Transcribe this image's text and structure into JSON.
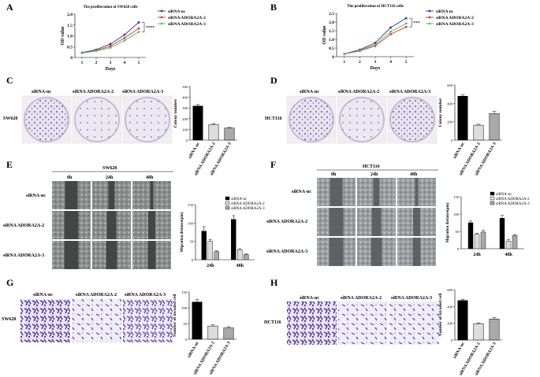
{
  "panel_labels": [
    "A",
    "B",
    "C",
    "D",
    "E",
    "F",
    "G",
    "H"
  ],
  "colors": {
    "nc": "#2d2db8",
    "r2": "#e0302a",
    "r3": "#4fc24f",
    "bar_nc": "#000000",
    "bar_r2": "#dcdcdc",
    "bar_r3": "#a9a9a9",
    "dish": "#e9e4ee",
    "crystal": "#4a2a98",
    "wound": "#6e7270"
  },
  "groups": {
    "nc": "siRNA-nc",
    "r2": "siRNA ADORA2A-2",
    "r3": "siRNA ADORA2A-3"
  },
  "legend_line": [
    "siRNA nc",
    "siRNA ADORA2A-2",
    "siRNA ADORA2A-3"
  ],
  "sig": "****",
  "sig_b": "***",
  "cell_lines": {
    "sw": "SW620",
    "hct": "HCT116"
  },
  "timepoints": [
    "0h",
    "24h",
    "48h"
  ],
  "chart_data": [
    {
      "id": "A",
      "type": "line",
      "title": "The proliferation of SW620 cells",
      "xlabel": "Days",
      "ylabel": "OD value",
      "x": [
        1,
        2,
        3,
        4,
        5
      ],
      "ylim": [
        0,
        2.0
      ],
      "yticks": [
        "0",
        "0.5",
        "1.0",
        "1.5",
        "2.0"
      ],
      "series": [
        {
          "name": "siRNA nc",
          "values": [
            0.22,
            0.36,
            0.62,
            1.05,
            1.62
          ]
        },
        {
          "name": "siRNA ADORA2A-2",
          "values": [
            0.21,
            0.32,
            0.52,
            0.9,
            1.34
          ]
        },
        {
          "name": "siRNA ADORA2A-3",
          "values": [
            0.2,
            0.3,
            0.45,
            0.78,
            1.18
          ]
        }
      ]
    },
    {
      "id": "B",
      "type": "line",
      "title": "The proliferation of HCT116 cells",
      "xlabel": "Days",
      "ylabel": "OD value",
      "x": [
        1,
        2,
        3,
        4,
        5
      ],
      "ylim": [
        0,
        2.5
      ],
      "yticks": [
        "0",
        "0.5",
        "1.0",
        "1.5",
        "2.0",
        "2.5"
      ],
      "series": [
        {
          "name": "siRNA nc",
          "values": [
            0.16,
            0.4,
            0.8,
            1.68,
            2.22
          ]
        },
        {
          "name": "siRNA ADORA2A-2",
          "values": [
            0.15,
            0.33,
            0.62,
            1.3,
            1.72
          ]
        },
        {
          "name": "siRNA ADORA2A-3",
          "values": [
            0.15,
            0.36,
            0.7,
            1.45,
            1.92
          ]
        }
      ]
    },
    {
      "id": "C",
      "type": "bar",
      "ylabel": "Colony number",
      "ylim": [
        0,
        500
      ],
      "yticks": [
        "0",
        "100",
        "200",
        "300",
        "400",
        "500"
      ],
      "categories": [
        "siRNA-nc",
        "siRNA ADORA2A-2",
        "siRNA ADORA2A-3"
      ],
      "values": [
        318,
        146,
        112
      ],
      "errors": [
        14,
        8,
        6
      ]
    },
    {
      "id": "D",
      "type": "bar",
      "ylabel": "Colony number",
      "ylim": [
        0,
        600
      ],
      "yticks": [
        "0",
        "200",
        "400",
        "600"
      ],
      "categories": [
        "siRNA-nc",
        "siRNA ADORA2A-2",
        "siRNA ADORA2A-3"
      ],
      "values": [
        478,
        162,
        290
      ],
      "errors": [
        14,
        10,
        22
      ]
    },
    {
      "id": "E",
      "type": "bar",
      "ylabel": "Migration distance(μm)",
      "ylim": [
        0,
        150
      ],
      "yticks": [
        "0",
        "50",
        "100",
        "150"
      ],
      "categories": [
        "24h",
        "48h"
      ],
      "series": [
        {
          "name": "siRNA-nc",
          "values": [
            78,
            110
          ],
          "errors": [
            12,
            10
          ]
        },
        {
          "name": "siRNA ADORA2A-2",
          "values": [
            50,
            27
          ],
          "errors": [
            5,
            3
          ]
        },
        {
          "name": "siRNA ADORA2A-3",
          "values": [
            22,
            14
          ],
          "errors": [
            2,
            2
          ]
        }
      ]
    },
    {
      "id": "F",
      "type": "bar",
      "ylabel": "Migration distance(μm)",
      "ylim": [
        0,
        150
      ],
      "yticks": [
        "0",
        "50",
        "100",
        "150"
      ],
      "categories": [
        "24h",
        "48h"
      ],
      "series": [
        {
          "name": "siRNA-nc",
          "values": [
            75,
            88
          ],
          "errors": [
            5,
            8
          ]
        },
        {
          "name": "siRNA ADORA2A-2",
          "values": [
            42,
            22
          ],
          "errors": [
            3,
            5
          ]
        },
        {
          "name": "siRNA ADORA2A-3",
          "values": [
            48,
            38
          ],
          "errors": [
            5,
            3
          ]
        }
      ]
    },
    {
      "id": "G",
      "type": "bar",
      "ylabel": "Number of invaded cell",
      "ylim": [
        0,
        150
      ],
      "yticks": [
        "0",
        "50",
        "100",
        "150"
      ],
      "categories": [
        "siRNA-nc",
        "siRNA ADORA2A-2",
        "siRNA ADORA2A-3"
      ],
      "values": [
        118,
        42,
        36
      ],
      "errors": [
        8,
        4,
        4
      ]
    },
    {
      "id": "H",
      "type": "bar",
      "ylabel": "Number of invaded cell",
      "ylim": [
        0,
        600
      ],
      "yticks": [
        "0",
        "200",
        "400",
        "600"
      ],
      "categories": [
        "siRNA-nc",
        "siRNA ADORA2A-2",
        "siRNA ADORA2A-3"
      ],
      "values": [
        470,
        195,
        250
      ],
      "errors": [
        14,
        10,
        16
      ]
    }
  ]
}
